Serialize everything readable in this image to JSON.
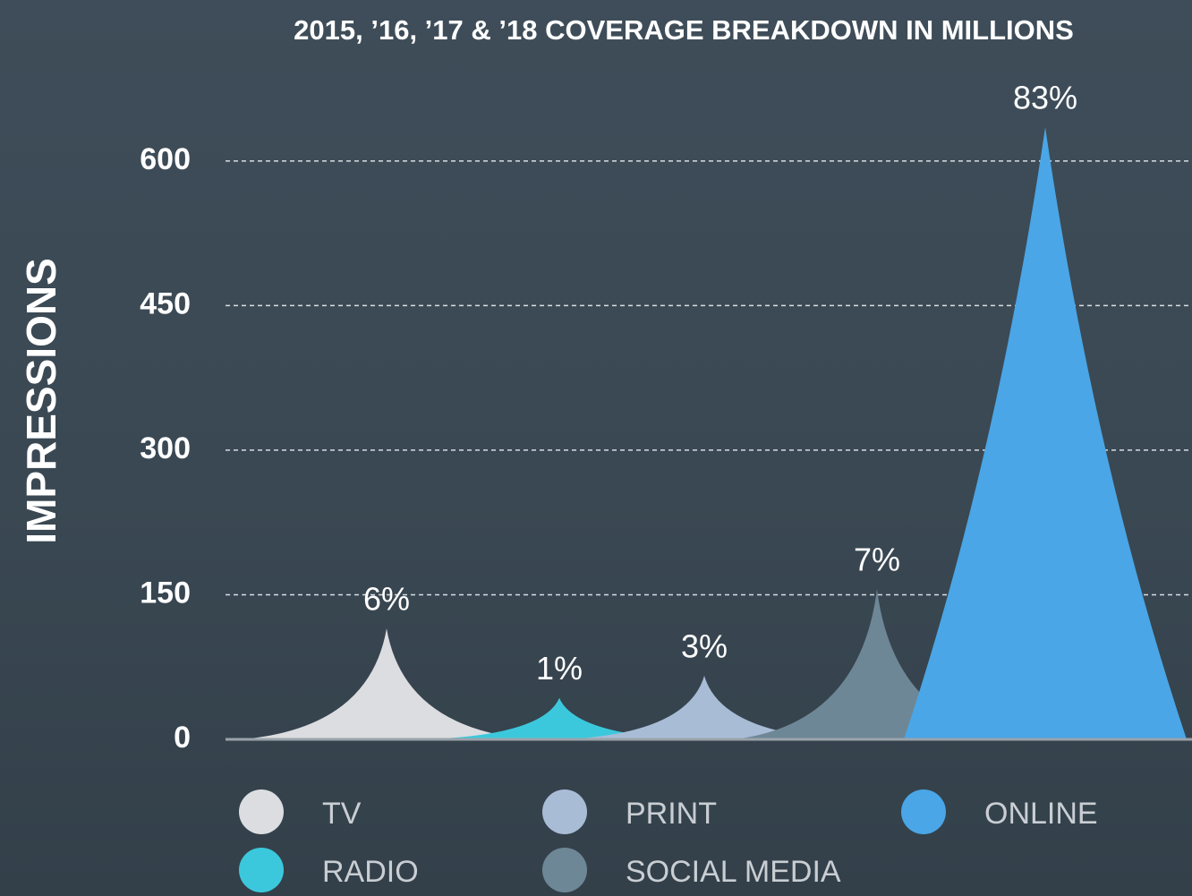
{
  "chart_data": {
    "type": "spike",
    "title": "2015, ’16, ’17 & ’18 COVERAGE BREAKDOWN IN MILLIONS",
    "y_label": "IMPRESSIONS",
    "categories": [
      "TV",
      "RADIO",
      "PRINT",
      "SOCIAL MEDIA",
      "ONLINE"
    ],
    "values": [
      115,
      43,
      66,
      156,
      635
    ],
    "annotations": [
      "6%",
      "1%",
      "3%",
      "7%",
      "83%"
    ],
    "colors": [
      "#dcdde0",
      "#3cc8dc",
      "#a9bcd6",
      "#6e8796",
      "#4aa6e6"
    ],
    "ylim": [
      0,
      650
    ],
    "yticks": [
      0,
      150,
      300,
      450,
      600
    ],
    "grid": true
  }
}
